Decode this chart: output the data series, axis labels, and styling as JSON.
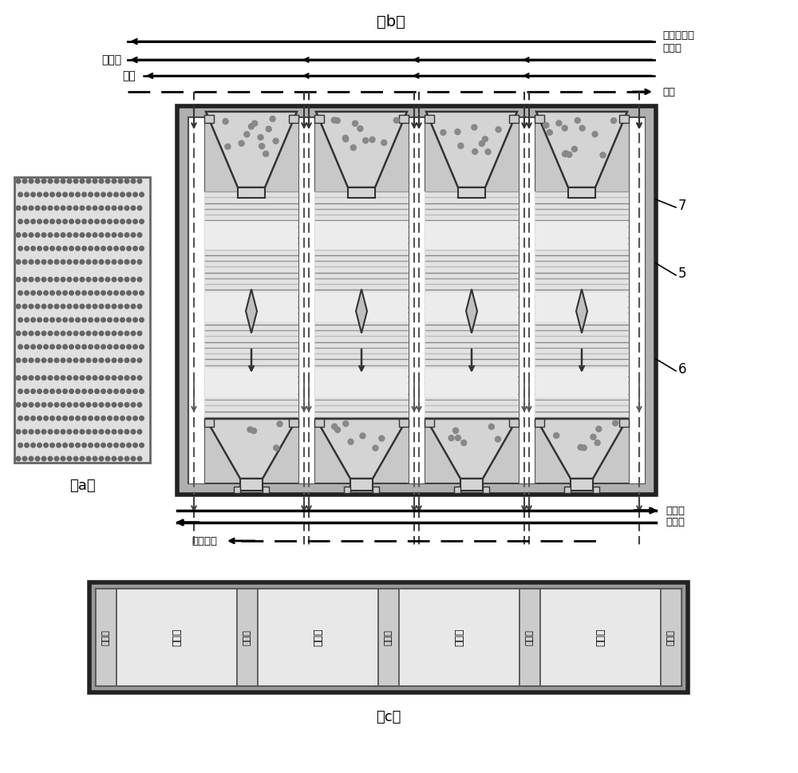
{
  "fig_width": 10.0,
  "fig_height": 9.69,
  "bg_color": "#ffffff",
  "label_b": "（b）",
  "label_a": "（a）",
  "label_c": "（c）",
  "text_hcl": "氯化氢",
  "text_air": "空气",
  "text_coal_gas": "煤气",
  "text_mg_oh_1": "羟基氯化镇",
  "text_mg_oh_2": "氧化镇",
  "text_mgo": "氧化镇",
  "text_steam": "水蒸气",
  "text_hot_flue": "高温烟气",
  "smoke_room_label": "烟气室",
  "reaction_room_label": "反应室",
  "label_5": "5",
  "label_6": "6",
  "label_7": "7",
  "reactor_fill": "#d8d8d8",
  "smoke_fill": "#ffffff",
  "outer_frame_fill": "#aaaaaa",
  "tube_line_color1": "#888888",
  "tube_line_color2": "#bbbbbb",
  "hopper_fill": "#d0d0d0",
  "hopper_edge": "#333333"
}
